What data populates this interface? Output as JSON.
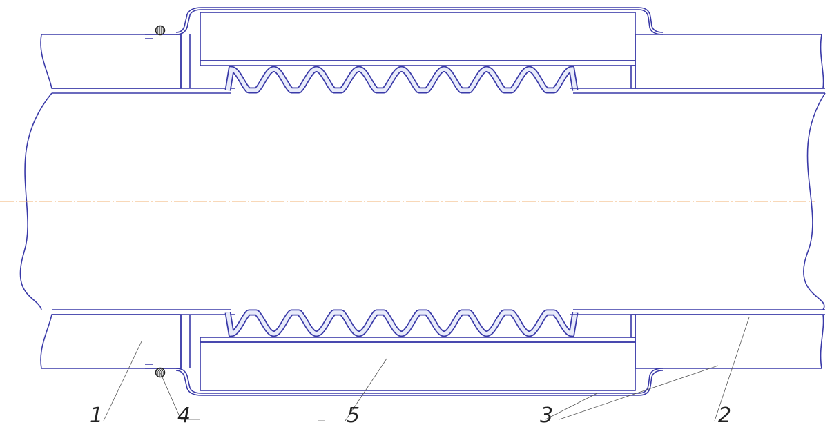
{
  "labels": [
    "1",
    "4",
    "5",
    "3",
    "2"
  ]
}
